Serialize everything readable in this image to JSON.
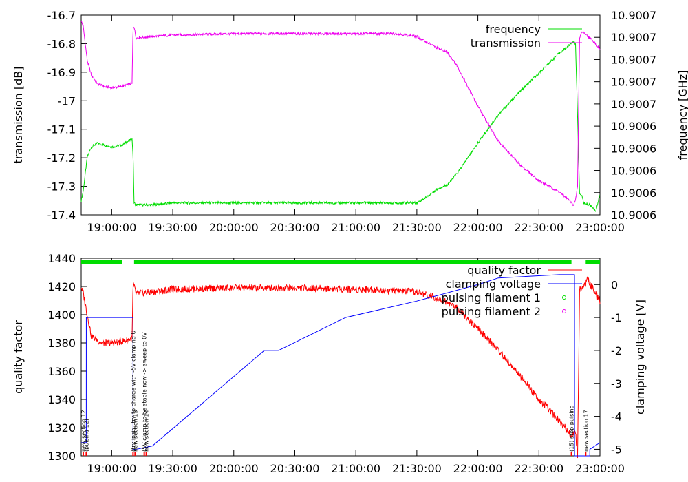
{
  "chart_data": [
    {
      "type": "line",
      "xlabel": "",
      "ylabel": "transmission [dB]",
      "y2label": "frequency [GHz]",
      "ylim": [
        -17.4,
        -16.7
      ],
      "y2lim": [
        10.9006,
        10.9007
      ],
      "xlim": [
        "18:45:00",
        "23:00:00"
      ],
      "yticks": [
        "-16.7",
        "-16.8",
        "-16.9",
        "-17",
        "-17.1",
        "-17.2",
        "-17.3",
        "-17.4"
      ],
      "y2ticks": [
        "10.9007",
        "10.9007",
        "10.9007",
        "10.9007",
        "10.9007",
        "10.9006",
        "10.9006",
        "10.9006",
        "10.9006",
        "10.9006"
      ],
      "xticks": [
        "19:00:00",
        "19:30:00",
        "20:00:00",
        "20:30:00",
        "21:00:00",
        "21:30:00",
        "22:00:00",
        "22:30:00",
        "23:00:00"
      ],
      "legend_position": "top-right",
      "series": [
        {
          "name": "frequency",
          "axis": "right",
          "color": "#00dd00",
          "x": [
            "18:45:00",
            "18:46:00",
            "18:48:00",
            "18:50:00",
            "18:53:00",
            "18:56:00",
            "19:00:00",
            "19:05:00",
            "19:10:00",
            "19:10:30",
            "19:11:00",
            "19:12:00",
            "19:20:00",
            "19:30:00",
            "20:00:00",
            "20:30:00",
            "21:00:00",
            "21:20:00",
            "21:30:00",
            "21:35:00",
            "21:40:00",
            "21:45:00",
            "21:50:00",
            "22:00:00",
            "22:10:00",
            "22:20:00",
            "22:30:00",
            "22:40:00",
            "22:45:00",
            "22:47:00",
            "22:48:00",
            "22:49:00",
            "22:50:00",
            "22:51:00",
            "22:52:00",
            "22:55:00",
            "22:58:00",
            "23:00:00"
          ],
          "values": [
            10.900607,
            10.900612,
            10.900629,
            10.900634,
            10.900636,
            10.900635,
            10.900634,
            10.900635,
            10.900638,
            10.90063,
            10.900606,
            10.900605,
            10.900605,
            10.900606,
            10.900606,
            10.900606,
            10.900606,
            10.900606,
            10.900606,
            10.900609,
            10.900613,
            10.900615,
            10.900621,
            10.900636,
            10.90065,
            10.900661,
            10.900671,
            10.900681,
            10.900685,
            10.900687,
            10.900685,
            10.90065,
            10.90061,
            10.90061,
            10.900606,
            10.900605,
            10.900602,
            10.90061
          ]
        },
        {
          "name": "transmission",
          "axis": "left",
          "color": "#ee00ee",
          "x": [
            "18:45:00",
            "18:46:00",
            "18:48:00",
            "18:50:00",
            "18:53:00",
            "18:56:00",
            "19:00:00",
            "19:05:00",
            "19:10:00",
            "19:10:30",
            "19:11:00",
            "19:12:00",
            "19:20:00",
            "19:30:00",
            "20:00:00",
            "20:30:00",
            "21:00:00",
            "21:20:00",
            "21:30:00",
            "21:35:00",
            "21:40:00",
            "21:45:00",
            "21:50:00",
            "22:00:00",
            "22:10:00",
            "22:20:00",
            "22:30:00",
            "22:40:00",
            "22:45:00",
            "22:47:00",
            "22:48:00",
            "22:49:00",
            "22:50:00",
            "22:51:00",
            "22:52:00",
            "22:55:00",
            "22:58:00",
            "23:00:00"
          ],
          "values": [
            -16.72,
            -16.74,
            -16.86,
            -16.91,
            -16.94,
            -16.95,
            -16.955,
            -16.95,
            -16.94,
            -16.74,
            -16.74,
            -16.78,
            -16.775,
            -16.77,
            -16.765,
            -16.765,
            -16.765,
            -16.765,
            -16.775,
            -16.795,
            -16.815,
            -16.83,
            -16.88,
            -17.02,
            -17.14,
            -17.22,
            -17.28,
            -17.32,
            -17.35,
            -17.365,
            -17.35,
            -17.3,
            -16.78,
            -16.76,
            -16.76,
            -16.78,
            -16.8,
            -16.82
          ]
        }
      ]
    },
    {
      "type": "line",
      "xlabel": "",
      "ylabel": "quality factor",
      "y2label": "clamping voltage [V]",
      "ylim": [
        1300,
        1440
      ],
      "y2lim": [
        -5.2,
        0.8
      ],
      "xlim": [
        "18:45:00",
        "23:00:00"
      ],
      "yticks": [
        "1440",
        "1420",
        "1400",
        "1380",
        "1360",
        "1340",
        "1320",
        "1300"
      ],
      "y2ticks": [
        "0",
        "-1",
        "-2",
        "-3",
        "-4",
        "-5"
      ],
      "xticks": [
        "19:00:00",
        "19:30:00",
        "20:00:00",
        "20:30:00",
        "21:00:00",
        "21:30:00",
        "22:00:00",
        "22:30:00",
        "23:00:00"
      ],
      "legend_position": "top-right",
      "series": [
        {
          "name": "quality factor",
          "axis": "left",
          "color": "#ff0000",
          "x": [
            "18:45:00",
            "18:46:00",
            "18:48:00",
            "18:50:00",
            "18:55:00",
            "19:00:00",
            "19:05:00",
            "19:10:00",
            "19:10:30",
            "19:12:00",
            "19:20:00",
            "19:30:00",
            "20:00:00",
            "20:30:00",
            "21:00:00",
            "21:20:00",
            "21:30:00",
            "21:40:00",
            "21:50:00",
            "22:00:00",
            "22:10:00",
            "22:20:00",
            "22:30:00",
            "22:40:00",
            "22:44:00",
            "22:46:00",
            "22:48:00",
            "22:49:00",
            "22:50:00",
            "22:52:00",
            "22:54:00",
            "22:56:00",
            "22:58:00",
            "23:00:00"
          ],
          "values": [
            1420,
            1415,
            1400,
            1385,
            1380,
            1380,
            1381,
            1383,
            1422,
            1415,
            1416,
            1418,
            1419,
            1419,
            1418,
            1417,
            1416,
            1412,
            1405,
            1390,
            1375,
            1358,
            1340,
            1325,
            1318,
            1315,
            1316,
            1300,
            1418,
            1420,
            1425,
            1420,
            1415,
            1410
          ]
        },
        {
          "name": "clamping voltage",
          "axis": "right",
          "color": "#0000ff",
          "x": [
            "18:45:00",
            "18:47:30",
            "18:47:31",
            "19:10:29",
            "19:10:30",
            "19:10:31",
            "19:12:00",
            "19:20:00",
            "20:15:00",
            "20:22:00",
            "20:55:00",
            "21:30:00",
            "22:00:00",
            "22:10:00",
            "22:40:00",
            "22:47:30",
            "22:47:31",
            "22:48:30",
            "22:48:31",
            "22:55:00",
            "22:55:01",
            "23:00:00"
          ],
          "values": [
            -4.8,
            -4.8,
            -1.0,
            -1.0,
            -5.0,
            -5.0,
            -5.0,
            -4.9,
            -2.0,
            -2.0,
            -1.0,
            -0.5,
            0.0,
            0.2,
            0.3,
            0.3,
            -5.2,
            -5.2,
            -5.2,
            -5.2,
            -5.0,
            -4.8
          ]
        },
        {
          "name": "pulsing filament 1",
          "axis": "top",
          "color": "#00dd00",
          "spans": [
            [
              "18:45:00",
              "19:05:00"
            ],
            [
              "19:11:00",
              "22:46:00"
            ],
            [
              "22:53:00",
              "23:00:00"
            ]
          ]
        },
        {
          "name": "pulsing filament 2",
          "axis": "top",
          "color": "#ee00ee",
          "spans": []
        }
      ],
      "annotations": [
        {
          "x": "18:46:00",
          "text": "new section 12"
        },
        {
          "x": "18:47:30",
          "text": "(pulsing 12)"
        },
        {
          "x": "19:10:30",
          "text": "(try insitu try to charge with -5V clamping U"
        },
        {
          "x": "19:11:30",
          "text": "new section 13"
        },
        {
          "x": "19:16:00",
          "text": "(5V clamp to be stable now -> sweep to 0V"
        },
        {
          "x": "19:17:00",
          "text": "new section 14"
        },
        {
          "x": "22:46:00",
          "text": "(15) stop pulsing"
        },
        {
          "x": "22:53:00",
          "text": "new section 17"
        }
      ]
    }
  ]
}
